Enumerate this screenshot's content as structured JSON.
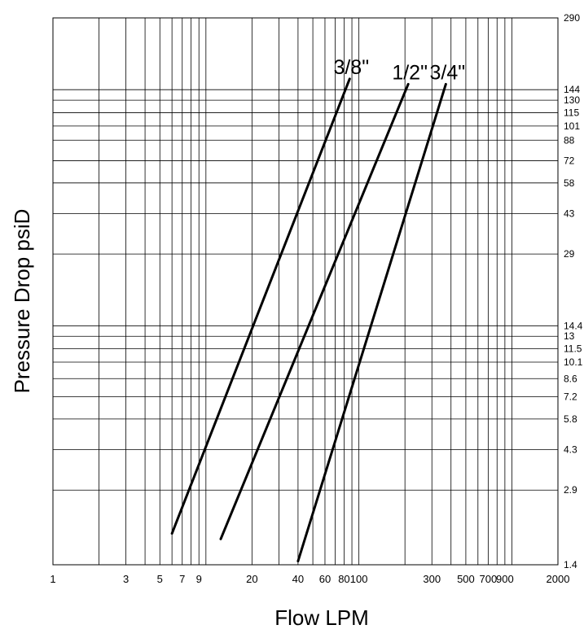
{
  "chart_data": {
    "type": "line",
    "xlabel": "Flow LPM",
    "ylabel": "Pressure Drop psiD",
    "x_scale": "log",
    "y_scale": "log",
    "xlim": [
      1,
      2000
    ],
    "ylim": [
      1.4,
      290
    ],
    "grid": true,
    "x_ticks": [
      1,
      3,
      5,
      7,
      9,
      20,
      40,
      60,
      80,
      100,
      300,
      500,
      700,
      900,
      2000
    ],
    "x_tick_labels": [
      "1",
      "3",
      "5",
      "7",
      "9",
      "20",
      "40",
      "60",
      "80",
      "100",
      "300",
      "500",
      "700",
      "900",
      "2000"
    ],
    "x_gridlines": [
      2,
      3,
      4,
      5,
      6,
      7,
      8,
      9,
      10,
      20,
      30,
      40,
      50,
      60,
      70,
      80,
      90,
      100,
      200,
      300,
      400,
      500,
      600,
      700,
      800,
      900,
      1000
    ],
    "y_ticks": [
      1.4,
      2.9,
      4.3,
      5.8,
      7.2,
      8.6,
      10.1,
      11.5,
      13,
      14.4,
      29,
      43,
      58,
      72,
      88,
      101,
      115,
      130,
      144,
      290
    ],
    "y_tick_labels": [
      "1.4",
      "2.9",
      "4.3",
      "5.8",
      "7.2",
      "8.6",
      "10.1",
      "11.5",
      "13",
      "14.4",
      "29",
      "43",
      "58",
      "72",
      "88",
      "101",
      "115",
      "130",
      "144",
      "290"
    ],
    "series": [
      {
        "name": "3/8\"",
        "x": [
          6,
          87
        ],
        "y": [
          1.9,
          160
        ]
      },
      {
        "name": "1/2\"",
        "x": [
          12.5,
          210
        ],
        "y": [
          1.8,
          152
        ]
      },
      {
        "name": "3/4\"",
        "x": [
          40,
          370
        ],
        "y": [
          1.45,
          152
        ]
      }
    ]
  }
}
